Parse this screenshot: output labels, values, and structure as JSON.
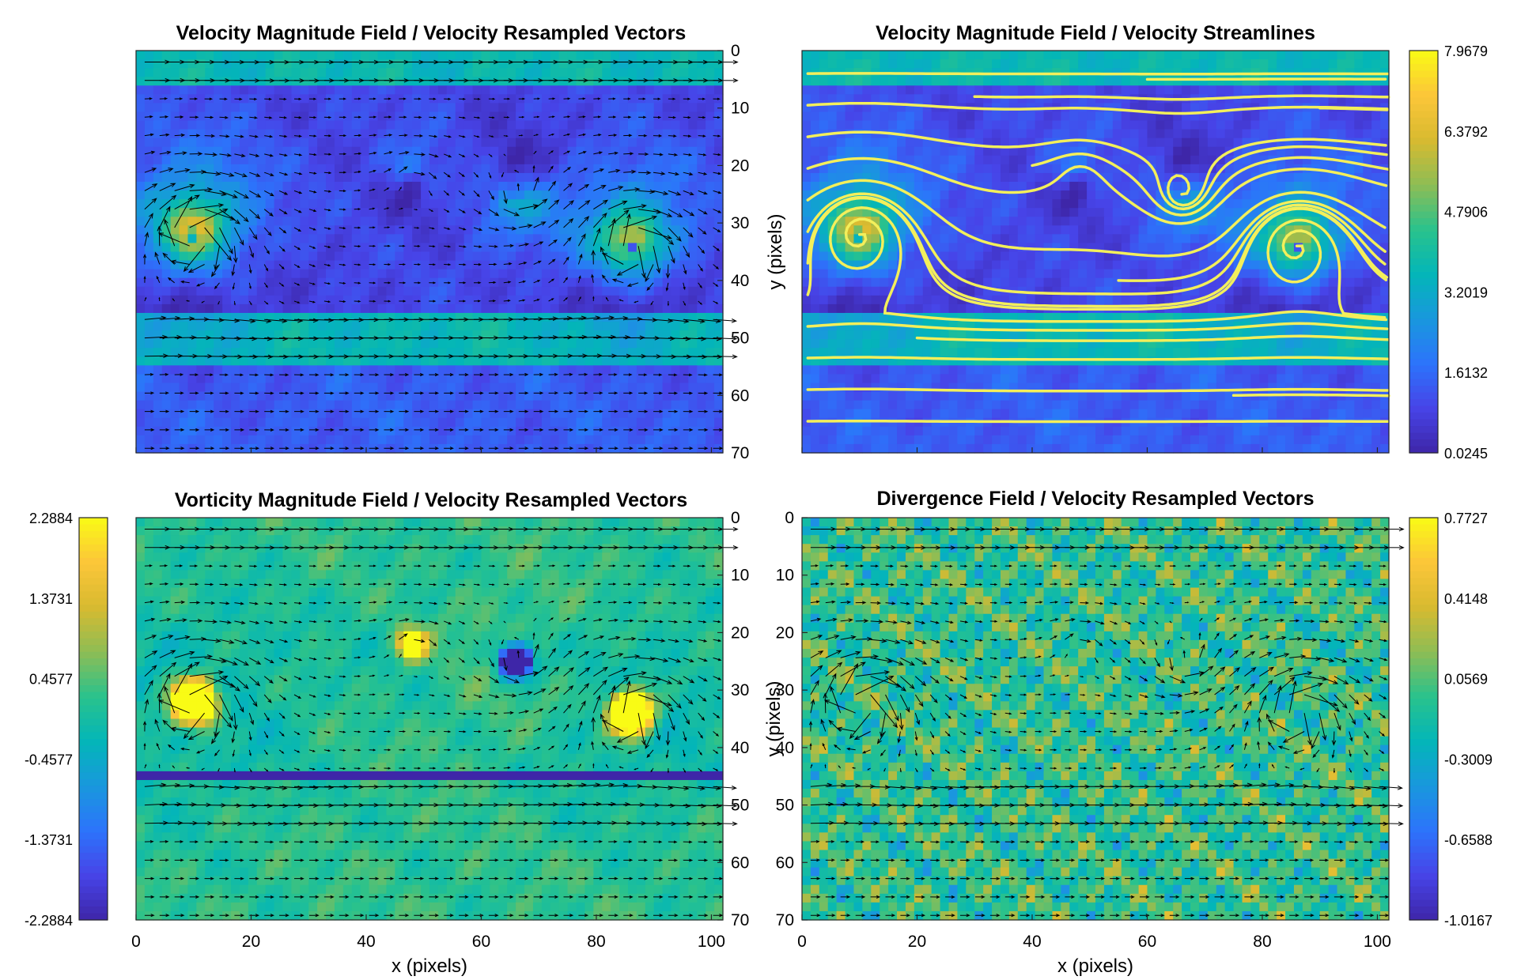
{
  "figure": {
    "x_axis_label": "x (pixels)",
    "y_axis_label": "y (pixels)",
    "x_ticks": [
      "0",
      "20",
      "40",
      "60",
      "80",
      "100"
    ],
    "y_ticks": [
      "0",
      "10",
      "20",
      "30",
      "40",
      "50",
      "60",
      "70"
    ]
  },
  "colormap": [
    "#3e26a8",
    "#4744e8",
    "#2c74fb",
    "#1998dd",
    "#03b6b8",
    "#2ac28c",
    "#8fbd54",
    "#d8ba30",
    "#fcc639",
    "#f9fb15"
  ],
  "chart_data": [
    {
      "id": "velocity-vectors",
      "type": "heatmap",
      "title": "Velocity Magnitude Field / Velocity Resampled Vectors",
      "field": "velocity-magnitude",
      "overlay": "vectors",
      "xlim": [
        0,
        102
      ],
      "ylim": [
        0,
        70
      ],
      "y_axis_side": "right",
      "show_y_label": true,
      "show_x_ticks": false,
      "colorbar": null
    },
    {
      "id": "velocity-streamlines",
      "type": "heatmap",
      "title": "Velocity Magnitude Field / Velocity Streamlines",
      "field": "velocity-magnitude",
      "overlay": "streamlines",
      "overlay_color": "#f3ef5b",
      "xlim": [
        0,
        102
      ],
      "ylim": [
        0,
        70
      ],
      "y_axis_side": "none",
      "show_x_ticks": false,
      "colorbar": {
        "side": "right",
        "ticks": [
          "7.9679",
          "6.3792",
          "4.7906",
          "3.2019",
          "1.6132",
          "0.0245"
        ]
      }
    },
    {
      "id": "vorticity-vectors",
      "type": "heatmap",
      "title": "Vorticity Magnitude Field / Velocity Resampled Vectors",
      "field": "vorticity",
      "overlay": "vectors",
      "xlim": [
        0,
        102
      ],
      "ylim": [
        0,
        70
      ],
      "y_axis_side": "right",
      "show_y_label": false,
      "show_x_ticks": true,
      "colorbar": {
        "side": "left",
        "ticks": [
          "2.2884",
          "1.3731",
          "0.4577",
          "-0.4577",
          "-1.3731",
          "-2.2884"
        ]
      }
    },
    {
      "id": "divergence-vectors",
      "type": "heatmap",
      "title": "Divergence Field / Velocity Resampled Vectors",
      "field": "divergence",
      "overlay": "vectors",
      "xlim": [
        0,
        102
      ],
      "ylim": [
        0,
        70
      ],
      "y_axis_side": "left",
      "show_y_label": true,
      "show_x_ticks": true,
      "colorbar": {
        "side": "right",
        "ticks": [
          "0.7727",
          "0.4148",
          "0.0569",
          "-0.3009",
          "-0.6588",
          "-1.0167"
        ]
      }
    }
  ]
}
